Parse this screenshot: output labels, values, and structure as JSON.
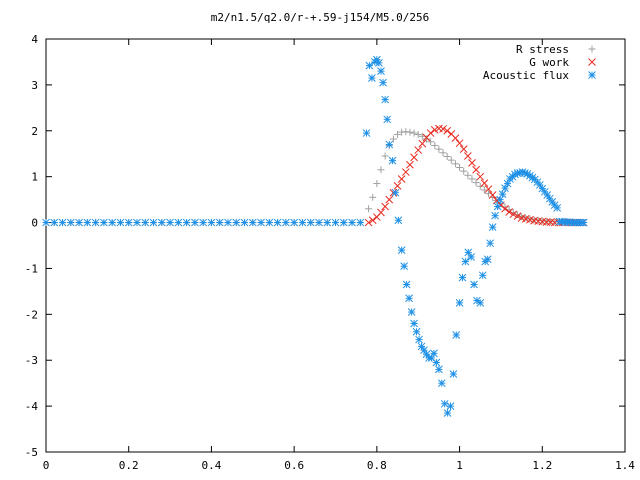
{
  "chart_data": {
    "type": "scatter",
    "title": "m2/n1.5/q2.0/r-+.59-j154/M5.0/256",
    "xlabel": "",
    "ylabel": "",
    "xlim": [
      0,
      1.4
    ],
    "ylim": [
      -5,
      4
    ],
    "x_ticks": [
      "0",
      "0.2",
      "0.4",
      "0.6",
      "0.8",
      "1",
      "1.2",
      "1.4"
    ],
    "y_ticks": [
      "-5",
      "-4",
      "-3",
      "-2",
      "-1",
      "0",
      "1",
      "2",
      "3",
      "4"
    ],
    "grid": false,
    "legend_position": "top-right",
    "series": [
      {
        "name": "R stress",
        "marker": "plus",
        "color": "#a0a0a0",
        "x": [
          0.0,
          0.02,
          0.04,
          0.06,
          0.08,
          0.1,
          0.12,
          0.14,
          0.16,
          0.18,
          0.2,
          0.22,
          0.24,
          0.26,
          0.28,
          0.3,
          0.32,
          0.34,
          0.36,
          0.38,
          0.4,
          0.42,
          0.44,
          0.46,
          0.48,
          0.5,
          0.52,
          0.54,
          0.56,
          0.58,
          0.6,
          0.62,
          0.64,
          0.66,
          0.68,
          0.7,
          0.72,
          0.74,
          0.76,
          0.78,
          0.79,
          0.8,
          0.81,
          0.82,
          0.83,
          0.84,
          0.85,
          0.86,
          0.87,
          0.88,
          0.89,
          0.9,
          0.91,
          0.92,
          0.93,
          0.94,
          0.95,
          0.96,
          0.97,
          0.98,
          0.99,
          1.0,
          1.01,
          1.02,
          1.03,
          1.04,
          1.05,
          1.06,
          1.07,
          1.08,
          1.09,
          1.1,
          1.11,
          1.12,
          1.13,
          1.14,
          1.15,
          1.16,
          1.17,
          1.18,
          1.19,
          1.2,
          1.21,
          1.22,
          1.23,
          1.24,
          1.25,
          1.26,
          1.27,
          1.28,
          1.29,
          1.3
        ],
        "y": [
          0,
          0,
          0,
          0,
          0,
          0,
          0,
          0,
          0,
          0,
          0,
          0,
          0,
          0,
          0,
          0,
          0,
          0,
          0,
          0,
          0,
          0,
          0,
          0,
          0,
          0,
          0,
          0,
          0,
          0,
          0,
          0,
          0,
          0,
          0,
          0,
          0,
          0,
          0,
          0.3,
          0.55,
          0.85,
          1.15,
          1.45,
          1.68,
          1.82,
          1.92,
          1.97,
          1.98,
          1.97,
          1.95,
          1.92,
          1.88,
          1.82,
          1.76,
          1.68,
          1.6,
          1.52,
          1.44,
          1.36,
          1.28,
          1.2,
          1.12,
          1.03,
          0.95,
          0.87,
          0.79,
          0.71,
          0.63,
          0.55,
          0.48,
          0.41,
          0.34,
          0.28,
          0.22,
          0.17,
          0.13,
          0.1,
          0.08,
          0.06,
          0.05,
          0.04,
          0.03,
          0.02,
          0.02,
          0.01,
          0.01,
          0.01,
          0,
          0,
          0,
          0
        ]
      },
      {
        "name": "G work",
        "marker": "cross",
        "color": "#e8281e",
        "x": [
          0.78,
          0.79,
          0.8,
          0.81,
          0.82,
          0.83,
          0.84,
          0.85,
          0.86,
          0.87,
          0.88,
          0.89,
          0.9,
          0.91,
          0.92,
          0.93,
          0.94,
          0.95,
          0.96,
          0.97,
          0.98,
          0.99,
          1.0,
          1.01,
          1.02,
          1.03,
          1.04,
          1.05,
          1.06,
          1.07,
          1.08,
          1.09,
          1.1,
          1.11,
          1.12,
          1.13,
          1.14,
          1.15,
          1.16,
          1.17,
          1.18,
          1.19,
          1.2,
          1.21,
          1.22,
          1.23,
          1.24,
          1.25,
          1.26,
          1.27,
          1.28,
          1.29,
          1.3
        ],
        "y": [
          0,
          0.05,
          0.12,
          0.22,
          0.35,
          0.5,
          0.65,
          0.8,
          0.95,
          1.1,
          1.26,
          1.42,
          1.58,
          1.72,
          1.85,
          1.95,
          2.02,
          2.05,
          2.04,
          2.0,
          1.93,
          1.84,
          1.73,
          1.6,
          1.45,
          1.3,
          1.15,
          1.0,
          0.86,
          0.73,
          0.6,
          0.48,
          0.38,
          0.3,
          0.23,
          0.18,
          0.14,
          0.1,
          0.08,
          0.06,
          0.04,
          0.03,
          0.02,
          0.01,
          0.01,
          0,
          0,
          0,
          0,
          0,
          0,
          0,
          0
        ]
      },
      {
        "name": "Acoustic flux",
        "marker": "star",
        "color": "#1e90e6",
        "x": [
          0.0,
          0.02,
          0.04,
          0.06,
          0.08,
          0.1,
          0.12,
          0.14,
          0.16,
          0.18,
          0.2,
          0.22,
          0.24,
          0.26,
          0.28,
          0.3,
          0.32,
          0.34,
          0.36,
          0.38,
          0.4,
          0.42,
          0.44,
          0.46,
          0.48,
          0.5,
          0.52,
          0.54,
          0.56,
          0.58,
          0.6,
          0.62,
          0.64,
          0.66,
          0.68,
          0.7,
          0.72,
          0.74,
          0.76,
          0.775,
          0.782,
          0.788,
          0.795,
          0.8,
          0.805,
          0.81,
          0.815,
          0.82,
          0.825,
          0.83,
          0.838,
          0.845,
          0.852,
          0.86,
          0.866,
          0.872,
          0.878,
          0.884,
          0.89,
          0.896,
          0.902,
          0.908,
          0.914,
          0.92,
          0.926,
          0.932,
          0.938,
          0.944,
          0.95,
          0.957,
          0.964,
          0.971,
          0.978,
          0.985,
          0.992,
          1.0,
          1.007,
          1.014,
          1.021,
          1.028,
          1.035,
          1.042,
          1.05,
          1.056,
          1.062,
          1.068,
          1.074,
          1.08,
          1.086,
          1.092,
          1.098,
          1.104,
          1.11,
          1.116,
          1.122,
          1.128,
          1.134,
          1.14,
          1.146,
          1.152,
          1.158,
          1.164,
          1.17,
          1.176,
          1.182,
          1.188,
          1.194,
          1.2,
          1.206,
          1.212,
          1.218,
          1.224,
          1.23,
          1.236,
          1.242,
          1.248,
          1.254,
          1.26,
          1.266,
          1.272,
          1.278,
          1.284,
          1.29,
          1.296,
          1.3
        ],
        "y": [
          0,
          0,
          0,
          0,
          0,
          0,
          0,
          0,
          0,
          0,
          0,
          0,
          0,
          0,
          0,
          0,
          0,
          0,
          0,
          0,
          0,
          0,
          0,
          0,
          0,
          0,
          0,
          0,
          0,
          0,
          0,
          0,
          0,
          0,
          0,
          0,
          0,
          0,
          0,
          1.95,
          3.42,
          3.15,
          3.5,
          3.55,
          3.48,
          3.3,
          3.05,
          2.68,
          2.25,
          1.7,
          1.35,
          0.65,
          0.05,
          -0.6,
          -0.95,
          -1.35,
          -1.65,
          -1.95,
          -2.2,
          -2.38,
          -2.55,
          -2.7,
          -2.78,
          -2.87,
          -2.95,
          -2.95,
          -2.85,
          -3.05,
          -3.2,
          -3.5,
          -3.95,
          -4.15,
          -4.0,
          -3.3,
          -2.45,
          -1.75,
          -1.2,
          -0.85,
          -0.65,
          -0.75,
          -1.35,
          -1.7,
          -1.75,
          -1.15,
          -0.85,
          -0.8,
          -0.45,
          -0.1,
          0.15,
          0.35,
          0.5,
          0.62,
          0.75,
          0.85,
          0.95,
          1.0,
          1.05,
          1.08,
          1.08,
          1.1,
          1.08,
          1.06,
          1.02,
          0.98,
          0.94,
          0.88,
          0.82,
          0.74,
          0.67,
          0.6,
          0.52,
          0.45,
          0.38,
          0.32,
          0.02,
          0.02,
          0.01,
          0.01,
          0.01,
          0,
          0,
          0,
          0,
          0,
          0
        ]
      }
    ]
  }
}
